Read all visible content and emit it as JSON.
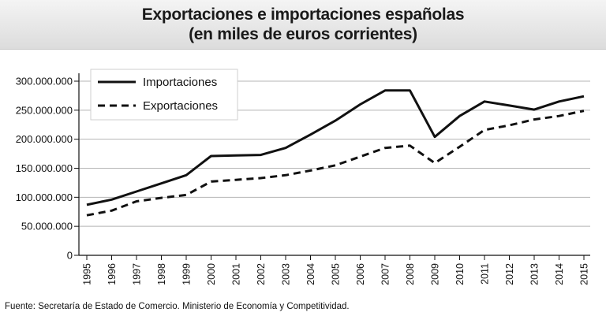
{
  "header": {
    "title": "Exportaciones e importaciones españolas",
    "subtitle": "(en miles de euros corrientes)"
  },
  "footer": {
    "source": "Fuente: Secretaría de Estado de Comercio. Ministerio de Economía y Competitividad."
  },
  "chart_data": {
    "type": "line",
    "title": "Exportaciones e importaciones españolas",
    "subtitle": "(en miles de euros corrientes)",
    "xlabel": "",
    "ylabel": "",
    "x": [
      "1995",
      "1996",
      "1997",
      "1998",
      "1999",
      "2000",
      "2001",
      "2002",
      "2003",
      "2004",
      "2005",
      "2006",
      "2007",
      "2008",
      "2009",
      "2010",
      "2011",
      "2012",
      "2013",
      "2014",
      "2015"
    ],
    "series": [
      {
        "name": "Importaciones",
        "style": "solid",
        "values": [
          87000000,
          96000000,
          110000000,
          124000000,
          138000000,
          171000000,
          172000000,
          173000000,
          185000000,
          208000000,
          232000000,
          260000000,
          284000000,
          284000000,
          204000000,
          240000000,
          265000000,
          258000000,
          251000000,
          265000000,
          274000000
        ]
      },
      {
        "name": "Exportaciones",
        "style": "dashed",
        "values": [
          69000000,
          77000000,
          93000000,
          99000000,
          104000000,
          127000000,
          130000000,
          133000000,
          138000000,
          146000000,
          155000000,
          170000000,
          185000000,
          189000000,
          159000000,
          187000000,
          216000000,
          224000000,
          234000000,
          240000000,
          249000000
        ]
      }
    ],
    "yticks": [
      0,
      50000000,
      100000000,
      150000000,
      200000000,
      250000000,
      300000000
    ],
    "ytick_labels": [
      "0",
      "50.000.000",
      "100.000.000",
      "150.000.000",
      "200.000.000",
      "250.000.000",
      "300.000.000"
    ],
    "ylim": [
      0,
      300000000
    ],
    "grid": "horizontal",
    "legend_position": "top-left",
    "line_color": "#111111",
    "background_color": "#ffffff"
  }
}
